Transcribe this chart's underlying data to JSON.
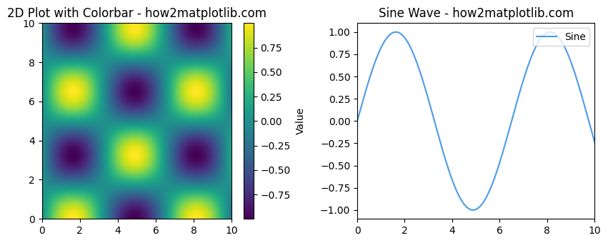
{
  "left_title": "2D Plot with Colorbar - how2matplotlib.com",
  "right_title": "Sine Wave - how2matplotlib.com",
  "colorbar_label": "Value",
  "sine_label": "Sine",
  "colormap": "viridis",
  "x_range": [
    0,
    10
  ],
  "y_range": [
    0,
    10
  ],
  "grid_points": 500,
  "sine_points": 500,
  "sine_freq": 0.9666,
  "imshow_freq": 0.9666,
  "line_color": "#4c9be8",
  "fig_width": 8.4,
  "fig_height": 3.5,
  "dpi": 100
}
